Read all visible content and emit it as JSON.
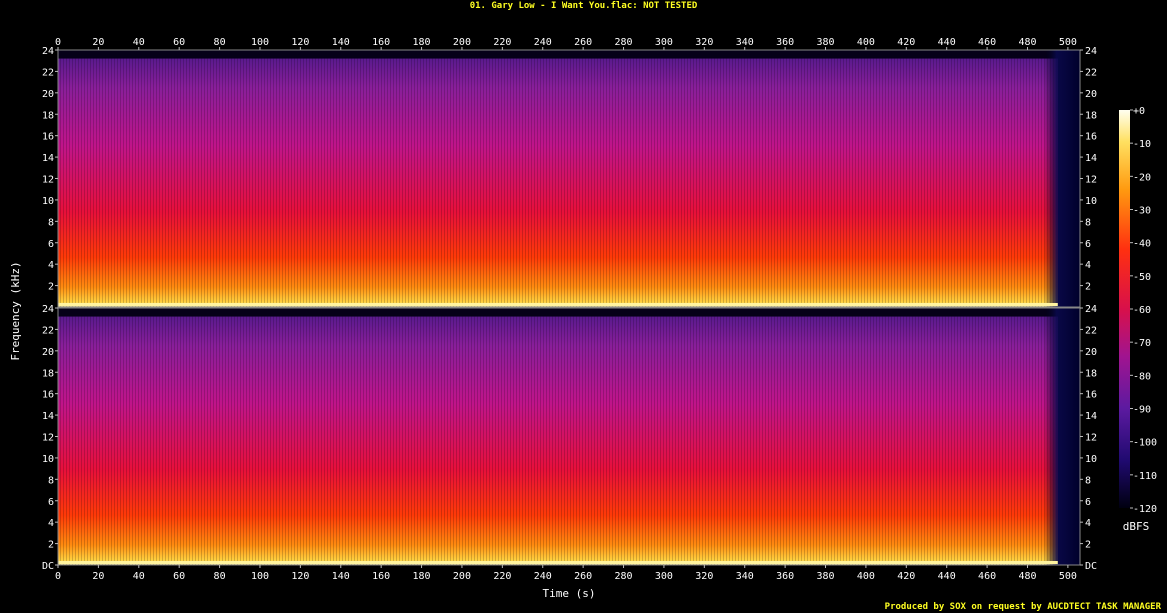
{
  "title": "01. Gary Low - I Want You.flac: NOT TESTED",
  "footer": "Produced by SOX on request by AUCDTECT TASK MANAGER",
  "chart_data": {
    "type": "heatmap",
    "title": "01. Gary Low - I Want You.flac: NOT TESTED",
    "xlabel": "Time (s)",
    "ylabel": "Frequency (kHz)",
    "xlim": [
      0,
      506
    ],
    "ylim": [
      0,
      24
    ],
    "x_ticks": [
      0,
      20,
      40,
      60,
      80,
      100,
      120,
      140,
      160,
      180,
      200,
      220,
      240,
      260,
      280,
      300,
      320,
      340,
      360,
      380,
      400,
      420,
      440,
      460,
      480,
      500
    ],
    "y_ticks": [
      2,
      4,
      6,
      8,
      10,
      12,
      14,
      16,
      18,
      20,
      22,
      24
    ],
    "y_tick_labels_top": [
      "2",
      "4",
      "6",
      "8",
      "10",
      "12",
      "14",
      "16",
      "18",
      "20",
      "22",
      "24"
    ],
    "y_tick_labels_bottom": [
      "DC",
      "2",
      "4",
      "6",
      "8",
      "10",
      "12",
      "14",
      "16",
      "18",
      "20",
      "22",
      "24"
    ],
    "channels": 2,
    "frequency_cutoff_khz": 23.2,
    "signal_end_s": 495,
    "colorbar": {
      "label": "dBFS",
      "range": [
        -120,
        0
      ],
      "ticks": [
        0,
        -10,
        -20,
        -30,
        -40,
        -50,
        -60,
        -70,
        -80,
        -90,
        -100,
        -110,
        -120
      ],
      "tick_labels": [
        "+0",
        "-10",
        "-20",
        "-30",
        "-40",
        "-50",
        "-60",
        "-70",
        "-80",
        "-90",
        "-100",
        "-110",
        "-120"
      ]
    },
    "colors": {
      "text": "#ffffff",
      "title": "#ffff22",
      "background": "#000000"
    }
  }
}
